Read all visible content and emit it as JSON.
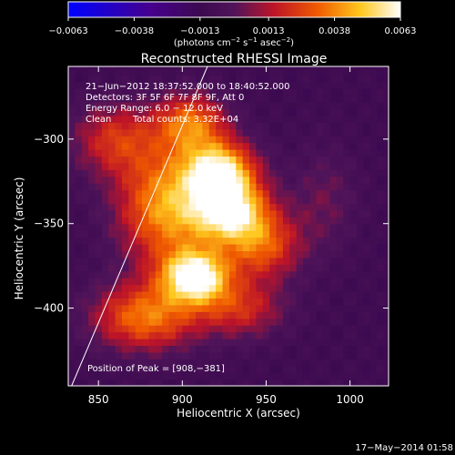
{
  "chart_data": {
    "type": "heatmap",
    "title": "Reconstructed RHESSI Image",
    "xlabel": "Heliocentric X (arcsec)",
    "ylabel": "Heliocentric Y (arcsec)",
    "xlim": [
      832,
      1023
    ],
    "ylim": [
      -446,
      -257
    ],
    "x_ticks": [
      850,
      900,
      950,
      1000
    ],
    "y_ticks": [
      -300,
      -350,
      -400
    ],
    "x_tick_labels": [
      "850",
      "900",
      "950",
      "1000"
    ],
    "y_tick_labels": [
      "−300",
      "−350",
      "−400"
    ],
    "colorbar": {
      "range": [
        -0.0063,
        0.0063
      ],
      "ticks": [
        -0.0063,
        -0.0038,
        -0.0013,
        0.0013,
        0.0038,
        0.0063
      ],
      "tick_labels": [
        "−0.0063",
        "−0.0038",
        "−0.0013",
        "0.0013",
        "0.0038",
        "0.0063"
      ],
      "unit_prefix": "(photons cm",
      "unit_exp1": "−2",
      "unit_mid": " s",
      "unit_exp2": "−1",
      "unit_end": " asec",
      "unit_exp3": "−2",
      "unit_close": ")"
    },
    "annotations": [
      "21−Jun−2012 18:37:52.000 to 18:40:52.000",
      "Detectors: 3F 5F 6F 7F 8F 9F, Att 0",
      "Energy Range: 6.0 − 12.0 keV",
      "Clean",
      "Total counts: 3.32E+04"
    ],
    "peak_label": "Position of Peak = [908,−381]",
    "peak": [
      908,
      -381
    ],
    "sources": [
      {
        "x": 908,
        "y": -381,
        "amp": 1.0,
        "sx": 14,
        "sy": 11
      },
      {
        "x": 928,
        "y": -342,
        "amp": 0.92,
        "sx": 16,
        "sy": 13
      },
      {
        "x": 922,
        "y": -318,
        "amp": 0.86,
        "sx": 15,
        "sy": 12
      },
      {
        "x": 890,
        "y": -340,
        "amp": 0.7,
        "sx": 20,
        "sy": 24
      },
      {
        "x": 878,
        "y": -405,
        "amp": 0.62,
        "sx": 22,
        "sy": 14
      },
      {
        "x": 905,
        "y": -290,
        "amp": 0.58,
        "sx": 15,
        "sy": 12
      },
      {
        "x": 948,
        "y": -363,
        "amp": 0.52,
        "sx": 16,
        "sy": 14
      },
      {
        "x": 860,
        "y": -300,
        "amp": 0.42,
        "sx": 18,
        "sy": 15
      },
      {
        "x": 935,
        "y": -400,
        "amp": 0.4,
        "sx": 18,
        "sy": 12
      },
      {
        "x": 985,
        "y": -335,
        "amp": 0.18,
        "sx": 14,
        "sy": 22
      }
    ],
    "limb_line": {
      "x": [
        915,
        834
      ],
      "y": [
        -257,
        -446
      ]
    }
  },
  "footer": {
    "timestamp": "17−May−2014 01:58"
  }
}
